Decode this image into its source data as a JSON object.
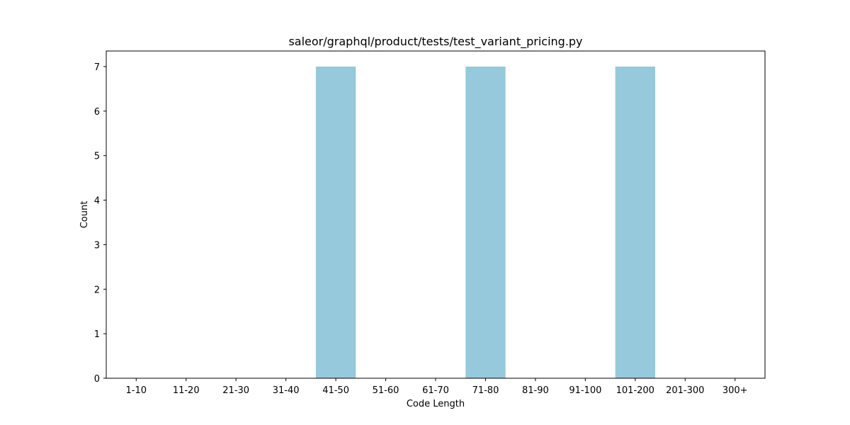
{
  "chart_data": {
    "type": "bar",
    "title": "saleor/graphql/product/tests/test_variant_pricing.py",
    "xlabel": "Code Length",
    "ylabel": "Count",
    "categories": [
      "1-10",
      "11-20",
      "21-30",
      "31-40",
      "41-50",
      "51-60",
      "61-70",
      "71-80",
      "81-90",
      "91-100",
      "101-200",
      "201-300",
      "300+"
    ],
    "values": [
      0,
      0,
      0,
      0,
      7,
      0,
      0,
      7,
      0,
      0,
      7,
      0,
      0
    ],
    "ylim": [
      0,
      7.35
    ],
    "yticks": [
      0,
      1,
      2,
      3,
      4,
      5,
      6,
      7
    ],
    "grid": false,
    "legend": "none",
    "bar_color": "#96c9dc"
  }
}
